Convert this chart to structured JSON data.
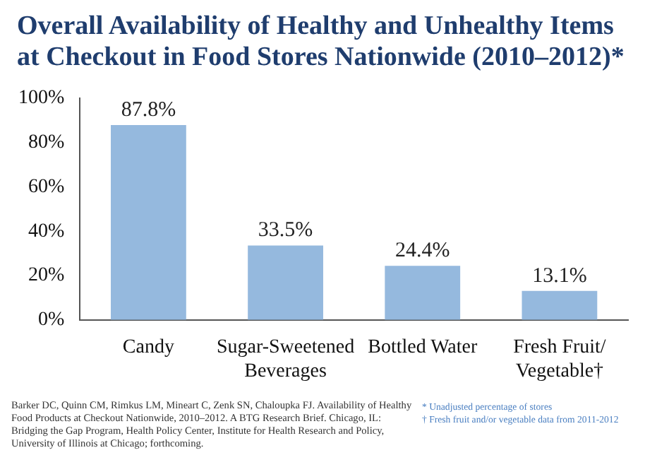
{
  "chart_data": {
    "type": "bar",
    "title": "Overall Availability of Healthy and Unhealthy Items at Checkout in Food Stores Nationwide (2010–2012)*",
    "categories": [
      "Candy",
      "Sugar-Sweetened\nBeverages",
      "Bottled Water",
      "Fresh Fruit/\nVegetable†"
    ],
    "values": [
      87.8,
      33.5,
      24.4,
      13.1
    ],
    "color": "#95b9de",
    "ylim": [
      0,
      100
    ],
    "yticks": [
      {
        "value": 0,
        "label": "0%"
      },
      {
        "value": 20,
        "label": "20%"
      },
      {
        "value": 40,
        "label": "40%"
      },
      {
        "value": 60,
        "label": "60%"
      },
      {
        "value": 80,
        "label": "80%"
      },
      {
        "value": 100,
        "label": "100%"
      }
    ],
    "value_labels": [
      "87.8%",
      "33.5%",
      "24.4%",
      "13.1%"
    ],
    "annotations": [
      "Barker DC, Quinn CM, Rimkus LM, Mineart C, Zenk SN, Chaloupka FJ.  Availability of Healthy Food Products at Checkout Nationwide, 2010–2012. A BTG Research  Brief. Chicago, IL: Bridging the Gap Program, Health Policy Center, Institute for Health  Research and Policy, University of Illinois at Chicago; forthcoming.",
      "* Unadjusted percentage of stores",
      "† Fresh fruit and/or vegetable data from 2011-2012"
    ]
  }
}
